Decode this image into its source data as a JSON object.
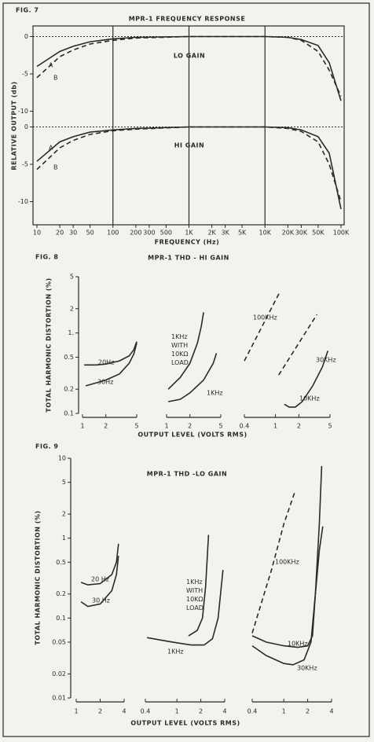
{
  "chart_data": [
    {
      "type": "line",
      "figure": "FIG. 7",
      "title": "MPR-1 FREQUENCY RESPONSE",
      "xlabel": "FREQUENCY (Hz)",
      "ylabel": "RELATIVE OUTPUT (db)",
      "color": "#2a2a2a",
      "log_x": true,
      "log_y": false,
      "grid": true,
      "xlim": [
        10,
        100000
      ],
      "xticks": [
        10,
        20,
        30,
        50,
        100,
        200,
        300,
        500,
        {
          "value": 1000,
          "label": "1K"
        },
        {
          "value": 2000,
          "label": "2K"
        },
        {
          "value": 3000,
          "label": "3K"
        },
        {
          "value": 5000,
          "label": "5K"
        },
        {
          "value": 10000,
          "label": "10K"
        },
        {
          "value": 20000,
          "label": "20K"
        },
        {
          "value": 30000,
          "label": "30K"
        },
        {
          "value": 50000,
          "label": "50K"
        },
        {
          "value": 100000,
          "label": "100K"
        }
      ],
      "panels": [
        {
          "label": "LO GAIN",
          "ylim": [
            -11,
            1
          ],
          "yticks": [
            0,
            -5,
            -10
          ],
          "series": [
            {
              "name": "A",
              "dash": false,
              "x": [
                10,
                20,
                30,
                50,
                100,
                200,
                1000,
                10000,
                20000,
                30000,
                50000,
                70000,
                100000
              ],
              "values": [
                -4,
                -2,
                -1.3,
                -0.7,
                -0.3,
                -0.1,
                0,
                0,
                -0.1,
                -0.4,
                -1.2,
                -3.5,
                -8.6
              ]
            },
            {
              "name": "B",
              "dash": true,
              "x": [
                10,
                20,
                30,
                50,
                100,
                200,
                1000,
                10000,
                20000,
                30000,
                50000,
                70000,
                100000
              ],
              "values": [
                -5.5,
                -2.7,
                -1.8,
                -1,
                -0.5,
                -0.2,
                0,
                0,
                -0.1,
                -0.5,
                -2,
                -4.5,
                -8
              ]
            }
          ]
        },
        {
          "label": "HI GAIN",
          "ylim": [
            -13,
            1
          ],
          "yticks": [
            0,
            -5,
            -10
          ],
          "series": [
            {
              "name": "A",
              "dash": false,
              "x": [
                10,
                20,
                30,
                50,
                100,
                200,
                1000,
                10000,
                20000,
                30000,
                50000,
                70000,
                100000
              ],
              "values": [
                -4.6,
                -2,
                -1.3,
                -0.7,
                -0.4,
                -0.2,
                0,
                0,
                -0.1,
                -0.4,
                -1.3,
                -3.5,
                -11
              ]
            },
            {
              "name": "B",
              "dash": true,
              "x": [
                10,
                20,
                30,
                50,
                100,
                200,
                1000,
                10000,
                20000,
                30000,
                50000,
                70000,
                100000
              ],
              "values": [
                -5.7,
                -2.8,
                -1.8,
                -1,
                -0.5,
                -0.3,
                0,
                0,
                -0.2,
                -0.6,
                -2,
                -5,
                -10
              ]
            }
          ]
        }
      ]
    },
    {
      "type": "line",
      "figure": "FIG. 8",
      "title": "MPR-1 THD - HI GAIN",
      "xlabel": "OUTPUT LEVEL (VOLTS RMS)",
      "ylabel": "TOTAL HARMONIC DISTORTION (%)",
      "color": "#2a2a2a",
      "log_x": true,
      "log_y": true,
      "ylim": [
        0.1,
        5
      ],
      "yticks": [
        5,
        2,
        {
          "value": 1,
          "label": "1."
        },
        0.5,
        0.2,
        0.1
      ],
      "panels": [
        {
          "xlim": [
            1,
            5
          ],
          "xticks": [
            1,
            2,
            5
          ],
          "series": [
            {
              "name": "20Hz",
              "dash": false,
              "x": [
                1.05,
                1.5,
                2,
                3,
                4,
                4.6,
                5
              ],
              "values": [
                0.4,
                0.4,
                0.41,
                0.45,
                0.52,
                0.62,
                0.78
              ]
            },
            {
              "name": "30Hz",
              "dash": false,
              "x": [
                1.1,
                1.5,
                2,
                3,
                4,
                4.6,
                5
              ],
              "values": [
                0.22,
                0.24,
                0.26,
                0.31,
                0.42,
                0.55,
                0.75
              ]
            }
          ]
        },
        {
          "xlim": [
            1,
            5
          ],
          "xticks": [
            1,
            2,
            5
          ],
          "series": [
            {
              "name": "1KHz WITH 10KΩ LOAD",
              "dash": false,
              "x": [
                1.05,
                1.5,
                2,
                2.5,
                2.8,
                3
              ],
              "values": [
                0.2,
                0.28,
                0.42,
                0.75,
                1.2,
                1.8
              ]
            },
            {
              "name": "1KHz",
              "dash": false,
              "x": [
                1.05,
                1.5,
                2,
                3,
                4,
                4.4
              ],
              "values": [
                0.14,
                0.15,
                0.18,
                0.26,
                0.42,
                0.56
              ]
            }
          ]
        },
        {
          "xlim": [
            0.4,
            5
          ],
          "xticks": [
            0.4,
            1,
            2,
            5
          ],
          "series": [
            {
              "name": "100KHz",
              "dash": true,
              "x": [
                0.4,
                1.15
              ],
              "values": [
                0.45,
                3.3
              ]
            },
            {
              "name": "30KHz",
              "dash": true,
              "x": [
                1.1,
                3.4
              ],
              "values": [
                0.3,
                1.7
              ]
            },
            {
              "name": "10KHz",
              "dash": false,
              "x": [
                1.3,
                1.5,
                1.8,
                2.2,
                3,
                4,
                4.7
              ],
              "values": [
                0.13,
                0.12,
                0.12,
                0.14,
                0.22,
                0.38,
                0.6
              ]
            }
          ]
        }
      ]
    },
    {
      "type": "line",
      "figure": "FIG. 9",
      "title": "MPR-1 THD -LO GAIN",
      "xlabel": "OUTPUT LEVEL (VOLTS RMS)",
      "ylabel": "TOTAL HARMONIC DISTORTION (%)",
      "color": "#2a2a2a",
      "log_x": true,
      "log_y": true,
      "ylim": [
        0.01,
        10
      ],
      "yticks": [
        10,
        5,
        2,
        1,
        0.5,
        0.2,
        0.1,
        0.05,
        0.02,
        0.01
      ],
      "panels": [
        {
          "xlim": [
            1,
            4
          ],
          "xticks": [
            1,
            2,
            4
          ],
          "series": [
            {
              "name": "20 Hz",
              "dash": false,
              "x": [
                1.15,
                1.4,
                2,
                2.8,
                3.2,
                3.4
              ],
              "values": [
                0.28,
                0.26,
                0.27,
                0.35,
                0.5,
                0.85
              ]
            },
            {
              "name": "30 Hz",
              "dash": false,
              "x": [
                1.15,
                1.4,
                2,
                2.8,
                3.2,
                3.4
              ],
              "values": [
                0.16,
                0.14,
                0.15,
                0.22,
                0.35,
                0.6
              ]
            }
          ]
        },
        {
          "xlim": [
            0.4,
            4
          ],
          "xticks": [
            0.4,
            1,
            2,
            4
          ],
          "series": [
            {
              "name": "1KHz WITH 10KΩ LOAD",
              "dash": false,
              "x": [
                1.4,
                1.8,
                2.1,
                2.3,
                2.5
              ],
              "values": [
                0.06,
                0.07,
                0.1,
                0.25,
                1.1
              ]
            },
            {
              "name": "1KHz",
              "dash": false,
              "x": [
                0.42,
                0.7,
                1,
                1.5,
                2.2,
                2.8,
                3.3,
                3.8
              ],
              "values": [
                0.057,
                0.052,
                0.049,
                0.046,
                0.046,
                0.055,
                0.1,
                0.4
              ]
            }
          ]
        },
        {
          "xlim": [
            0.4,
            4
          ],
          "xticks": [
            0.4,
            1,
            2,
            4
          ],
          "series": [
            {
              "name": "100KHz",
              "dash": true,
              "x": [
                0.4,
                0.7,
                1,
                1.4
              ],
              "values": [
                0.065,
                0.4,
                1.5,
                4
              ]
            },
            {
              "name": "10KHz",
              "dash": false,
              "x": [
                0.4,
                0.6,
                1,
                1.5,
                2,
                2.3,
                2.5,
                2.8,
                3.1
              ],
              "values": [
                0.06,
                0.05,
                0.045,
                0.043,
                0.045,
                0.06,
                0.2,
                0.7,
                1.4
              ]
            },
            {
              "name": "30KHz",
              "dash": false,
              "x": [
                0.4,
                0.6,
                1,
                1.3,
                1.8,
                2.2,
                2.5,
                2.8,
                3
              ],
              "values": [
                0.045,
                0.034,
                0.027,
                0.026,
                0.03,
                0.05,
                0.2,
                1.5,
                8
              ]
            }
          ]
        }
      ]
    }
  ]
}
